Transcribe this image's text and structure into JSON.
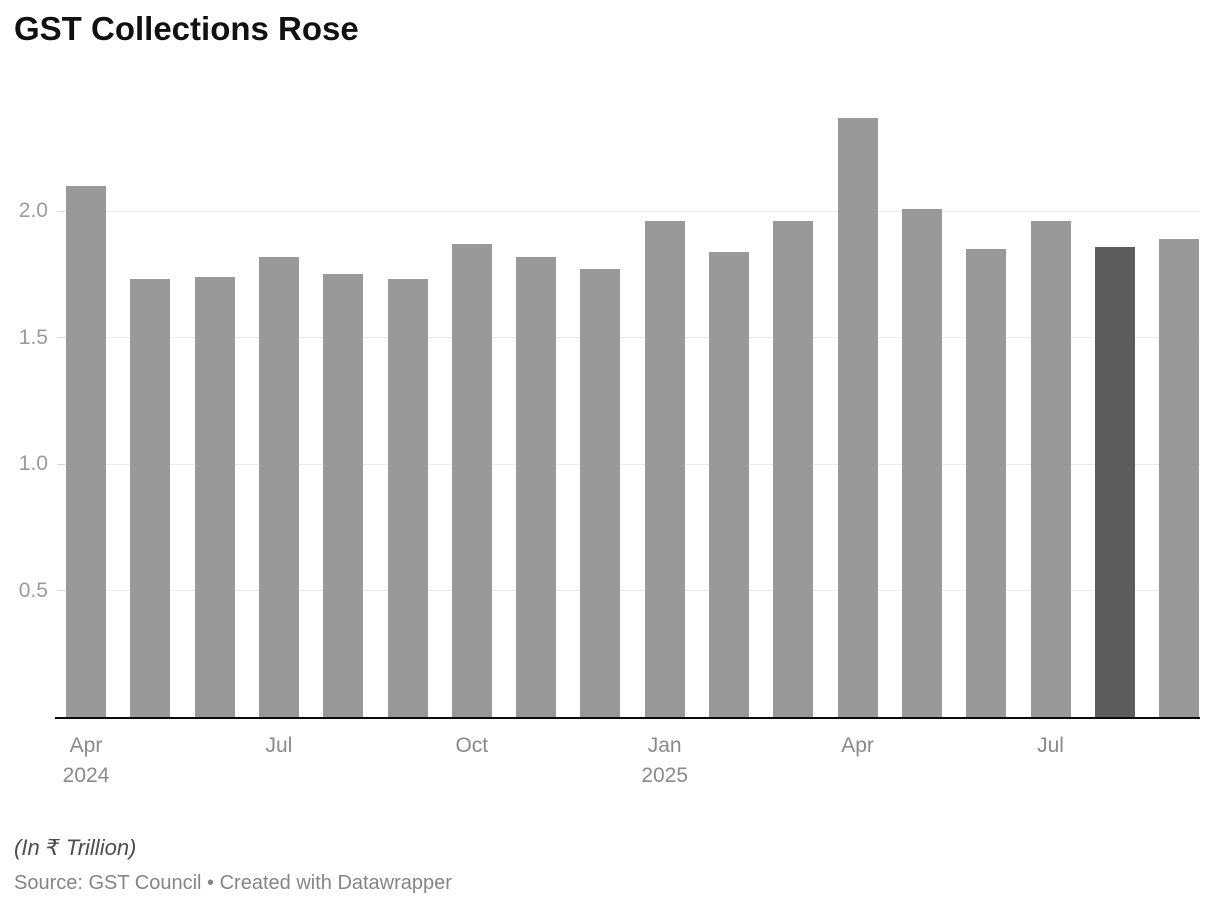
{
  "header": {
    "title": "GST Collections Rose"
  },
  "footer": {
    "note": "(In ₹ Trillion)",
    "source": "Source: GST Council • Created with Datawrapper"
  },
  "chart_data": {
    "type": "bar",
    "title": "GST Collections Rose",
    "unit": "₹ Trillion",
    "categories": [
      "Apr 2024",
      "May 2024",
      "Jun 2024",
      "Jul 2024",
      "Aug 2024",
      "Sep 2024",
      "Oct 2024",
      "Nov 2024",
      "Dec 2024",
      "Jan 2025",
      "Feb 2025",
      "Mar 2025",
      "Apr 2025",
      "May 2025",
      "Jun 2025",
      "Jul 2025",
      "Aug 2025",
      "Sep 2025"
    ],
    "values": [
      2.1,
      1.73,
      1.74,
      1.82,
      1.75,
      1.73,
      1.87,
      1.82,
      1.77,
      1.96,
      1.84,
      1.96,
      2.37,
      2.01,
      1.85,
      1.96,
      1.86,
      1.89
    ],
    "xlabel": "",
    "ylabel": "",
    "ylim": [
      0,
      2.49
    ],
    "yticks": [
      0.5,
      1.0,
      1.5,
      2.0
    ],
    "ytick_labels": [
      "0.5",
      "1.0",
      "1.5",
      "2.0"
    ],
    "xticks": [
      {
        "index": 0,
        "label": "Apr",
        "sub": "2024"
      },
      {
        "index": 3,
        "label": "Jul",
        "sub": ""
      },
      {
        "index": 6,
        "label": "Oct",
        "sub": ""
      },
      {
        "index": 9,
        "label": "Jan",
        "sub": "2025"
      },
      {
        "index": 12,
        "label": "Apr",
        "sub": ""
      },
      {
        "index": 15,
        "label": "Jul",
        "sub": ""
      }
    ],
    "grid": "horizontal",
    "legend": "none",
    "bar_color": "#999999",
    "highlight_color": "#5d5d5d",
    "highlight_index": 16,
    "gridline_color": "#ececec",
    "axis_line_color": "#0a0a0a"
  }
}
